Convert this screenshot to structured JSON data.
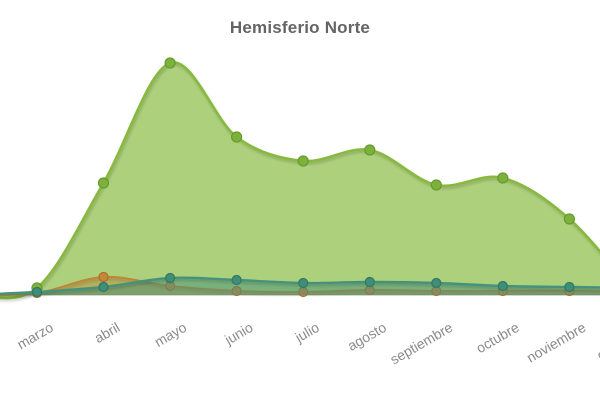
{
  "colors": {
    "background": "#ffffff",
    "title_color": "#646464",
    "label_color": "#8a8a8a",
    "axis_line": "#c9c9c9",
    "green_line": "#86b93e",
    "green_fill": "rgba(134,185,62,0.68)",
    "green_marker": "#7cb23c",
    "green_marker_stroke": "#699a2e",
    "orange_line": "#c08534",
    "orange_fill": "rgba(192,133,52,0.45)",
    "orange_marker": "#c8863a",
    "orange_marker_stroke": "#a96f2a",
    "teal_line": "#44927b",
    "teal_fill": "rgba(68,146,123,0.5)",
    "teal_marker": "#3f8e77",
    "teal_marker_stroke": "#337763"
  },
  "chart_data": {
    "type": "area",
    "title": "Hemisferio Norte",
    "xlabel": "",
    "ylabel": "",
    "categories": [
      "marzo",
      "abril",
      "mayo",
      "junio",
      "julio",
      "agosto",
      "septiembre",
      "octubre",
      "noviembre",
      "diciembre"
    ],
    "series": [
      {
        "name": "green-main-area",
        "values": [
          7,
          112,
          232,
          158,
          134,
          145,
          110,
          117,
          76,
          0
        ]
      },
      {
        "name": "orange-small-area",
        "values": [
          2,
          18,
          9,
          4,
          3,
          5,
          4,
          4,
          4,
          3
        ]
      },
      {
        "name": "teal-small-area",
        "values": [
          3,
          8,
          17,
          15,
          12,
          13,
          12,
          9,
          8,
          7
        ]
      }
    ],
    "ylim": [
      0,
      250
    ],
    "grid": false,
    "legend": "none",
    "y_axis_visible": false,
    "x_labels_rotation_deg": -30,
    "notes": "last category label clipped at right edge; lines enter plot from left edge at baseline"
  }
}
